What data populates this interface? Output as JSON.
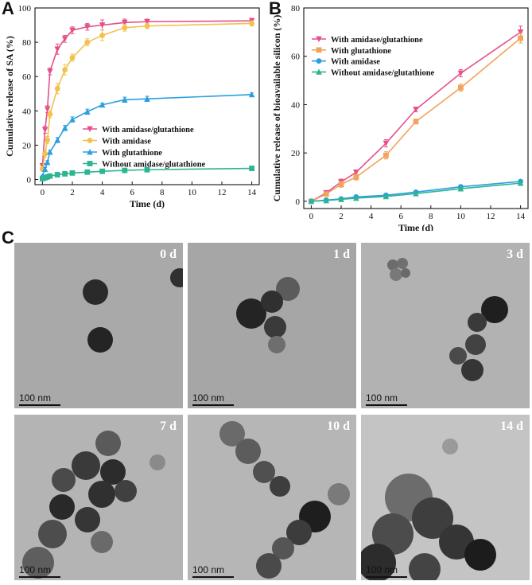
{
  "figure": {
    "panel_letters": [
      "A",
      "B",
      "C"
    ]
  },
  "chart_data": [
    {
      "panel": "A",
      "type": "line",
      "xlabel": "Time (d)",
      "ylabel": "Cumulative release of SA (%)",
      "xlim": [
        -0.5,
        14.5
      ],
      "ylim": [
        -3,
        100
      ],
      "xticks": [
        0,
        2,
        4,
        6,
        8,
        10,
        12,
        14
      ],
      "yticks": [
        0,
        20,
        40,
        60,
        80,
        100
      ],
      "legend": "center-right",
      "series": [
        {
          "name": "With amidase/glutathione",
          "marker": "triangle-down",
          "color": "#e5508b",
          "x": [
            0,
            0.17,
            0.33,
            0.5,
            1,
            1.5,
            2,
            3,
            4,
            5.5,
            7,
            14
          ],
          "y": [
            8,
            29,
            41,
            63,
            76,
            82,
            87,
            89,
            90,
            91.5,
            92,
            92.5
          ],
          "err": [
            1,
            2,
            2,
            2,
            3,
            2,
            2,
            2,
            3,
            2,
            1.5,
            1.5
          ]
        },
        {
          "name": "With amidase",
          "marker": "circle",
          "color": "#f2c14e",
          "x": [
            0,
            0.17,
            0.33,
            0.5,
            1,
            1.5,
            2,
            3,
            4,
            5.5,
            7,
            14
          ],
          "y": [
            6,
            15,
            23,
            38,
            53,
            64,
            71,
            80,
            84,
            88.5,
            89.5,
            91
          ],
          "err": [
            1,
            2,
            2,
            2,
            3,
            3,
            2,
            2,
            3,
            2,
            1.5,
            1.5
          ]
        },
        {
          "name": "With glutathione",
          "marker": "triangle-up",
          "color": "#2b9fe0",
          "x": [
            0,
            0.17,
            0.33,
            0.5,
            1,
            1.5,
            2,
            3,
            4,
            5.5,
            7,
            14
          ],
          "y": [
            2,
            6,
            10,
            16,
            23,
            30,
            35,
            39.5,
            43.5,
            46.5,
            47,
            49.5
          ],
          "err": [
            0.5,
            1,
            1,
            1,
            1.5,
            1.5,
            1.5,
            1.5,
            1,
            1.5,
            1.5,
            1
          ]
        },
        {
          "name": "Without amidase/glutathione",
          "marker": "square",
          "color": "#2bb592",
          "x": [
            0,
            0.17,
            0.33,
            0.5,
            1,
            1.5,
            2,
            3,
            4,
            5.5,
            7,
            14
          ],
          "y": [
            0.5,
            1,
            1.5,
            2,
            2.8,
            3.3,
            3.8,
            4.3,
            4.8,
            5.3,
            5.7,
            6.5
          ],
          "err": [
            0.3,
            0.3,
            0.3,
            0.3,
            0.4,
            0.4,
            0.4,
            0.4,
            0.4,
            0.4,
            0.4,
            0.4
          ]
        }
      ]
    },
    {
      "panel": "B",
      "type": "line",
      "xlabel": "Time (d)",
      "ylabel": "Cumulative release of bioavailable silicon (%)",
      "xlim": [
        -0.5,
        14.5
      ],
      "ylim": [
        -3,
        80
      ],
      "xticks": [
        0,
        2,
        4,
        6,
        8,
        10,
        12,
        14
      ],
      "yticks": [
        0,
        20,
        40,
        60,
        80
      ],
      "legend": "top-left",
      "series": [
        {
          "name": "With amidase/glutathione",
          "marker": "triangle-down",
          "color": "#e5508b",
          "x": [
            0,
            1,
            2,
            3,
            5,
            7,
            10,
            14
          ],
          "y": [
            0,
            3.5,
            8,
            12,
            24,
            38,
            53,
            70
          ],
          "err": [
            0.3,
            0.8,
            1.2,
            1,
            1.5,
            1,
            1.5,
            2.5
          ]
        },
        {
          "name": "With glutathione",
          "marker": "square",
          "color": "#f2a35e",
          "x": [
            0,
            1,
            2,
            3,
            5,
            7,
            10,
            14
          ],
          "y": [
            0,
            3,
            7,
            10,
            19,
            33,
            47,
            67.5
          ],
          "err": [
            0.3,
            0.8,
            1.2,
            1.2,
            1.5,
            1,
            1.5,
            2
          ]
        },
        {
          "name": "With amidase",
          "marker": "circle",
          "color": "#2b9fe0",
          "x": [
            0,
            1,
            2,
            3,
            5,
            7,
            10,
            14
          ],
          "y": [
            0,
            0.5,
            1,
            1.8,
            2.5,
            3.8,
            6,
            8.2
          ],
          "err": [
            0.2,
            0.2,
            0.3,
            0.3,
            0.3,
            0.4,
            0.6,
            0.6
          ]
        },
        {
          "name": "Without amidase/glutathione",
          "marker": "triangle-up",
          "color": "#2bb592",
          "x": [
            0,
            1,
            2,
            3,
            5,
            7,
            10,
            14
          ],
          "y": [
            0,
            0.3,
            0.8,
            1.3,
            2,
            3.2,
            5.2,
            7.5
          ],
          "err": [
            0.2,
            0.2,
            0.3,
            0.3,
            0.3,
            0.4,
            0.5,
            0.6
          ]
        }
      ]
    }
  ],
  "tem_panels": [
    {
      "label": "0 d",
      "scale": "100 nm"
    },
    {
      "label": "1 d",
      "scale": "100 nm"
    },
    {
      "label": "3 d",
      "scale": "100 nm"
    },
    {
      "label": "7 d",
      "scale": "100 nm"
    },
    {
      "label": "10 d",
      "scale": "100 nm"
    },
    {
      "label": "14 d",
      "scale": "100 nm"
    }
  ]
}
